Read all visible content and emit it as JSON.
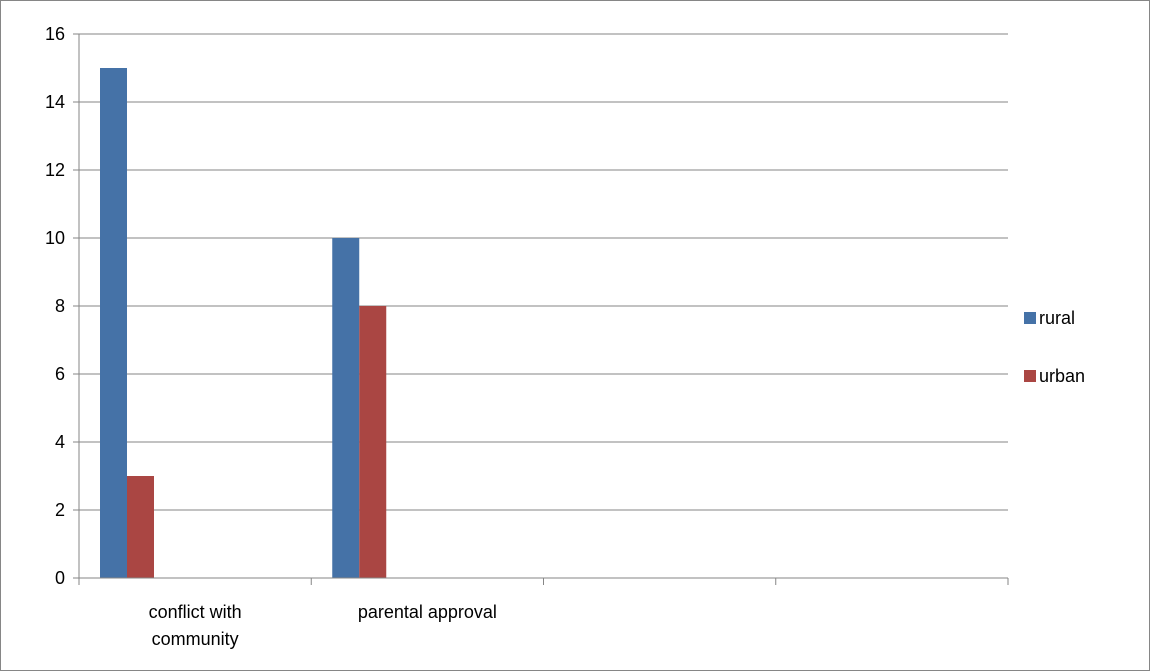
{
  "chart_data": {
    "type": "bar",
    "title": "",
    "xlabel": "",
    "ylabel": "",
    "categories": [
      [
        "conflict with",
        "community"
      ],
      [
        "parental approval"
      ],
      [
        ""
      ],
      [
        ""
      ]
    ],
    "series": [
      {
        "name": "rural",
        "color": "#4572A7",
        "values": [
          15,
          10,
          null,
          null
        ]
      },
      {
        "name": "urban",
        "color": "#AA4643",
        "values": [
          3,
          8,
          null,
          null
        ]
      }
    ],
    "ylim": [
      0,
      16
    ],
    "yticks": [
      0,
      2,
      4,
      6,
      8,
      10,
      12,
      14,
      16
    ],
    "grid": true,
    "legend_position": "right"
  }
}
